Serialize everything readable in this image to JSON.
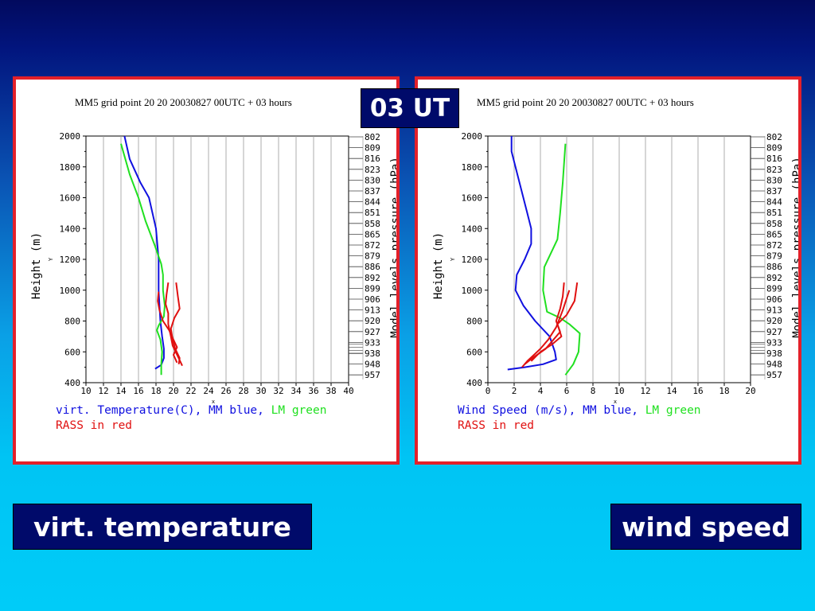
{
  "slide": {
    "time_label": "03 UT",
    "left_caption": "virt. temperature",
    "right_caption": "wind speed",
    "colors": {
      "frame": "#e3202a",
      "badge_bg": "#000a6a",
      "mm": "#1010e0",
      "lm": "#20e020",
      "rass": "#e01010"
    }
  },
  "chart_data": [
    {
      "type": "line",
      "title": "MM5 grid point  20 20  20030827 00UTC + 03 hours",
      "ylabel": "Height (m)",
      "xlabel": "x",
      "ylabel_small": "Y",
      "right_axis_label": "Model levels pressure (hPa)",
      "xlim": [
        10,
        40
      ],
      "ylim": [
        400,
        2000
      ],
      "x_ticks": [
        10,
        12,
        14,
        16,
        18,
        20,
        22,
        24,
        26,
        28,
        30,
        32,
        34,
        36,
        38,
        40
      ],
      "y_ticks": [
        400,
        600,
        800,
        1000,
        1200,
        1400,
        1600,
        1800,
        2000
      ],
      "pressure_levels": [
        "802",
        "809",
        "816",
        "823",
        "830",
        "837",
        "844",
        "851",
        "858",
        "865",
        "872",
        "879",
        "886",
        "892",
        "899",
        "906",
        "913",
        "920",
        "927",
        "933",
        "938",
        "948",
        "957"
      ],
      "legend_line1": [
        {
          "text": "virt. Temperature(C), MM blue, ",
          "color": "#1010e0"
        },
        {
          "text": "LM green",
          "color": "#20e020"
        }
      ],
      "legend_line2": {
        "text": "RASS in red",
        "color": "#e01010"
      },
      "series": [
        {
          "name": "MM",
          "color": "#1010e0",
          "x": [
            17.9,
            18.6,
            18.9,
            18.9,
            18.7,
            18.5,
            18.4,
            18.3,
            18.3,
            18.0,
            17.2,
            16.2,
            15.0,
            14.4
          ],
          "y": [
            490,
            515,
            560,
            620,
            700,
            800,
            900,
            1000,
            1200,
            1400,
            1600,
            1700,
            1850,
            2000
          ]
        },
        {
          "name": "LM",
          "color": "#20e020",
          "x": [
            18.6,
            18.6,
            18.7,
            18.5,
            18.1,
            18.3,
            18.9,
            19.0,
            18.8,
            18.8,
            18.6,
            17.8,
            16.8,
            16.0,
            15.0,
            14.0
          ],
          "y": [
            450,
            520,
            600,
            680,
            740,
            770,
            830,
            900,
            1000,
            1100,
            1170,
            1300,
            1450,
            1600,
            1750,
            1950
          ]
        },
        {
          "name": "RASS 1",
          "color": "#e01010",
          "x": [
            19.4,
            19.2,
            19.1,
            19.4,
            19.4,
            19.7,
            19.9,
            20.5,
            21.0
          ],
          "y": [
            1050,
            970,
            910,
            850,
            780,
            700,
            640,
            570,
            510
          ]
        },
        {
          "name": "RASS 2",
          "color": "#e01010",
          "x": [
            20.3,
            20.5,
            20.7,
            20.1,
            19.7,
            19.9,
            20.2,
            20.7,
            20.6
          ],
          "y": [
            1050,
            960,
            880,
            820,
            750,
            680,
            620,
            560,
            520
          ]
        },
        {
          "name": "RASS 3",
          "color": "#e01010",
          "x": [
            18.3,
            18.2,
            18.4,
            18.8,
            19.5,
            19.9,
            20.4,
            20.0,
            20.4
          ],
          "y": [
            990,
            930,
            870,
            800,
            740,
            690,
            630,
            580,
            530
          ]
        }
      ]
    },
    {
      "type": "line",
      "title": "MM5 grid point  20 20  20030827 00UTC + 03 hours",
      "ylabel": "Height (m)",
      "xlabel": "x",
      "ylabel_small": "Y",
      "right_axis_label": "Model levels pressure (hPa)",
      "xlim": [
        0,
        20
      ],
      "ylim": [
        400,
        2000
      ],
      "x_ticks": [
        0,
        2,
        4,
        6,
        8,
        10,
        12,
        14,
        16,
        18,
        20
      ],
      "y_ticks": [
        400,
        600,
        800,
        1000,
        1200,
        1400,
        1600,
        1800,
        2000
      ],
      "pressure_levels": [
        "802",
        "809",
        "816",
        "823",
        "830",
        "837",
        "844",
        "851",
        "858",
        "865",
        "872",
        "879",
        "886",
        "892",
        "899",
        "906",
        "913",
        "920",
        "927",
        "933",
        "938",
        "948",
        "957"
      ],
      "legend_line1": [
        {
          "text": "Wind Speed (m/s), MM blue,    ",
          "color": "#1010e0"
        },
        {
          "text": "LM green",
          "color": "#20e020"
        }
      ],
      "legend_line2": {
        "text": "RASS in red",
        "color": "#e01010"
      },
      "series": [
        {
          "name": "MM",
          "color": "#1010e0",
          "x": [
            1.5,
            2.8,
            4.2,
            5.2,
            5.1,
            4.7,
            3.6,
            2.7,
            2.1,
            2.2,
            2.8,
            3.3,
            3.3,
            3.0,
            2.4,
            1.8,
            1.8
          ],
          "y": [
            485,
            500,
            520,
            550,
            600,
            700,
            800,
            900,
            1000,
            1100,
            1200,
            1300,
            1400,
            1500,
            1700,
            1900,
            2000
          ]
        },
        {
          "name": "LM",
          "color": "#20e020",
          "x": [
            5.9,
            6.5,
            6.9,
            7.0,
            6.2,
            5.5,
            4.5,
            4.2,
            4.3,
            5.3,
            5.5,
            5.7,
            5.9
          ],
          "y": [
            450,
            520,
            600,
            720,
            780,
            820,
            860,
            1000,
            1150,
            1330,
            1500,
            1700,
            1950
          ]
        },
        {
          "name": "RASS 1",
          "color": "#e01010",
          "x": [
            5.8,
            5.7,
            5.5,
            5.2,
            5.5,
            5.0,
            4.4,
            3.4,
            2.8
          ],
          "y": [
            1050,
            960,
            880,
            800,
            730,
            680,
            620,
            560,
            520
          ]
        },
        {
          "name": "RASS 2",
          "color": "#e01010",
          "x": [
            6.8,
            6.6,
            6.0,
            5.3,
            5.6,
            4.9,
            4.0,
            3.3
          ],
          "y": [
            1050,
            930,
            840,
            780,
            700,
            650,
            600,
            540
          ]
        },
        {
          "name": "RASS 3",
          "color": "#e01010",
          "x": [
            6.2,
            5.7,
            5.2,
            4.6,
            4.0,
            3.5,
            3.0,
            2.6
          ],
          "y": [
            1000,
            870,
            760,
            680,
            620,
            580,
            540,
            500
          ]
        }
      ]
    }
  ]
}
